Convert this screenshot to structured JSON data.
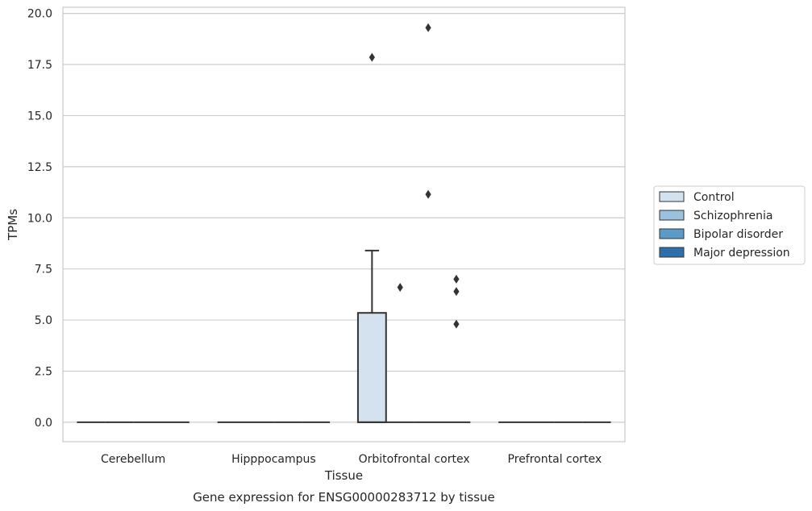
{
  "chart_data": {
    "type": "box",
    "title": "Gene expression for ENSG00000283712 by tissue",
    "xlabel": "Tissue",
    "ylabel": "TPMs",
    "ylim": [
      -0.95,
      20.3
    ],
    "yticks": [
      0.0,
      2.5,
      5.0,
      7.5,
      10.0,
      12.5,
      15.0,
      17.5,
      20.0
    ],
    "ytick_labels": [
      "0.0",
      "2.5",
      "5.0",
      "7.5",
      "10.0",
      "12.5",
      "15.0",
      "17.5",
      "20.0"
    ],
    "grid": "horizontal",
    "legend_position": "right-center",
    "categories": [
      "Cerebellum",
      "Hipppocampus",
      "Orbitofrontal cortex",
      "Prefrontal cortex"
    ],
    "series": [
      {
        "name": "Control",
        "color": "#d4e2f0",
        "boxes": [
          {
            "category": "Cerebellum",
            "q1": 0,
            "median": 0,
            "q3": 0,
            "whisker_low": 0,
            "whisker_high": 0,
            "outliers": []
          },
          {
            "category": "Hipppocampus",
            "q1": 0,
            "median": 0,
            "q3": 0,
            "whisker_low": 0,
            "whisker_high": 0,
            "outliers": []
          },
          {
            "category": "Orbitofrontal cortex",
            "q1": 0,
            "median": 0,
            "q3": 5.35,
            "whisker_low": 0,
            "whisker_high": 8.4,
            "outliers": [
              17.85
            ]
          },
          {
            "category": "Prefrontal cortex",
            "q1": 0,
            "median": 0,
            "q3": 0,
            "whisker_low": 0,
            "whisker_high": 0,
            "outliers": []
          }
        ]
      },
      {
        "name": "Schizophrenia",
        "color": "#9ac1dd",
        "boxes": [
          {
            "category": "Cerebellum",
            "q1": 0,
            "median": 0,
            "q3": 0,
            "whisker_low": 0,
            "whisker_high": 0,
            "outliers": []
          },
          {
            "category": "Hipppocampus",
            "q1": 0,
            "median": 0,
            "q3": 0,
            "whisker_low": 0,
            "whisker_high": 0,
            "outliers": []
          },
          {
            "category": "Orbitofrontal cortex",
            "q1": 0,
            "median": 0,
            "q3": 0,
            "whisker_low": 0,
            "whisker_high": 0,
            "outliers": [
              6.6
            ]
          },
          {
            "category": "Prefrontal cortex",
            "q1": 0,
            "median": 0,
            "q3": 0,
            "whisker_low": 0,
            "whisker_high": 0,
            "outliers": []
          }
        ]
      },
      {
        "name": "Bipolar disorder",
        "color": "#5a9bc9",
        "boxes": [
          {
            "category": "Cerebellum",
            "q1": 0,
            "median": 0,
            "q3": 0,
            "whisker_low": 0,
            "whisker_high": 0,
            "outliers": []
          },
          {
            "category": "Hipppocampus",
            "q1": 0,
            "median": 0,
            "q3": 0,
            "whisker_low": 0,
            "whisker_high": 0,
            "outliers": []
          },
          {
            "category": "Orbitofrontal cortex",
            "q1": 0,
            "median": 0,
            "q3": 0,
            "whisker_low": 0,
            "whisker_high": 0,
            "outliers": [
              19.3,
              11.15
            ]
          },
          {
            "category": "Prefrontal cortex",
            "q1": 0,
            "median": 0,
            "q3": 0,
            "whisker_low": 0,
            "whisker_high": 0,
            "outliers": []
          }
        ]
      },
      {
        "name": "Major depression",
        "color": "#2d6fab",
        "boxes": [
          {
            "category": "Cerebellum",
            "q1": 0,
            "median": 0,
            "q3": 0,
            "whisker_low": 0,
            "whisker_high": 0,
            "outliers": []
          },
          {
            "category": "Hipppocampus",
            "q1": 0,
            "median": 0,
            "q3": 0,
            "whisker_low": 0,
            "whisker_high": 0,
            "outliers": []
          },
          {
            "category": "Orbitofrontal cortex",
            "q1": 0,
            "median": 0,
            "q3": 0,
            "whisker_low": 0,
            "whisker_high": 0,
            "outliers": [
              7.0,
              6.4,
              4.8
            ]
          },
          {
            "category": "Prefrontal cortex",
            "q1": 0,
            "median": 0,
            "q3": 0,
            "whisker_low": 0,
            "whisker_high": 0,
            "outliers": []
          }
        ]
      }
    ],
    "style": {
      "grid_color": "#cccccc",
      "frame_color": "#cccccc",
      "line_color": "#333333"
    }
  }
}
